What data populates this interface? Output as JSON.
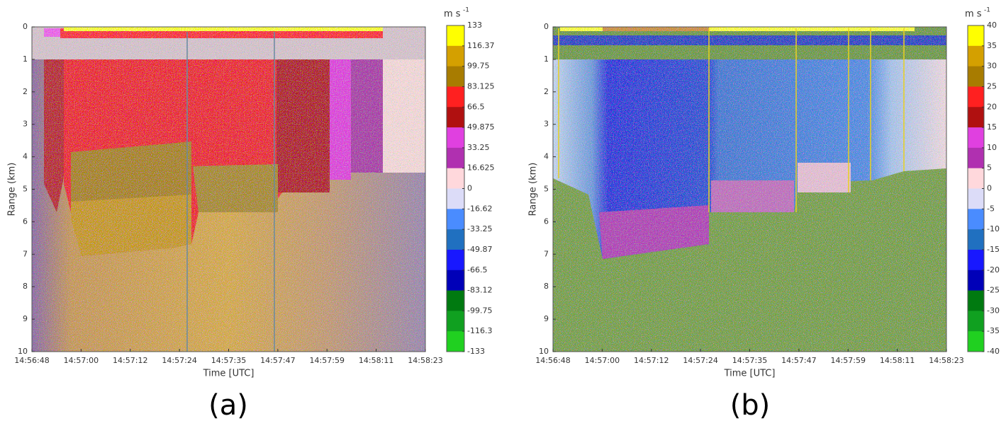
{
  "chart_data": [
    {
      "type": "heatmap",
      "panel_label": "(a)",
      "x_label": "Time [UTC]",
      "y_label": "Range (km)",
      "xticks": [
        "14:56:48",
        "14:57:00",
        "14:57:12",
        "14:57:24",
        "14:57:35",
        "14:57:47",
        "14:57:59",
        "14:58:11",
        "14:58:23"
      ],
      "ylim": [
        10,
        0
      ],
      "yticks": [
        0,
        1,
        2,
        3,
        4,
        5,
        6,
        7,
        8,
        9,
        10
      ],
      "colorbar": {
        "unit": "m s",
        "unit_exponent": "-1",
        "ticks": [
          133,
          116.37,
          99.75,
          83.125,
          66.5,
          49.875,
          33.25,
          16.625,
          0,
          -16.62,
          -33.25,
          -49.87,
          -66.5,
          -83.12,
          -99.75,
          -116.3,
          -133
        ],
        "colors": [
          "#ffff00",
          "#d4a000",
          "#a87c00",
          "#ff2020",
          "#b01010",
          "#e040e0",
          "#b030b0",
          "#ffd8dc",
          "#dcdcf8",
          "#4a8cff",
          "#2070c0",
          "#1818ff",
          "#0000b8",
          "#007a10",
          "#10a020",
          "#20d020"
        ]
      }
    },
    {
      "type": "heatmap",
      "panel_label": "(b)",
      "x_label": "Time [UTC]",
      "y_label": "Range (km)",
      "xticks": [
        "14:56:48",
        "14:57:00",
        "14:57:12",
        "14:57:24",
        "14:57:35",
        "14:57:47",
        "14:57:59",
        "14:58:11",
        "14:58:23"
      ],
      "ylim": [
        10,
        0
      ],
      "yticks": [
        0,
        1,
        2,
        3,
        4,
        5,
        6,
        7,
        8,
        9,
        10
      ],
      "colorbar": {
        "unit": "m s",
        "unit_exponent": "-1",
        "ticks": [
          40,
          35,
          30,
          25,
          20,
          15,
          10,
          5,
          0,
          -5,
          -10,
          -15,
          -20,
          -25,
          -30,
          -35,
          -40
        ],
        "colors": [
          "#ffff00",
          "#d4a000",
          "#a87c00",
          "#ff2020",
          "#b01010",
          "#e040e0",
          "#b030b0",
          "#ffd8dc",
          "#dcdcf8",
          "#4a8cff",
          "#2070c0",
          "#1818ff",
          "#0000b8",
          "#007a10",
          "#10a020",
          "#20d020"
        ]
      }
    }
  ]
}
